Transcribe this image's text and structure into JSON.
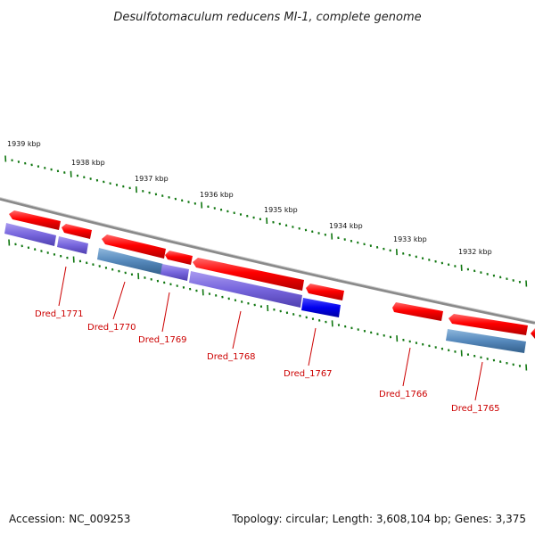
{
  "title": "Desulfotomaculum reducens MI-1, complete genome",
  "ruler_labels": [
    "1939 kbp",
    "1938 kbp",
    "1937 kbp",
    "1936 kbp",
    "1935 kbp",
    "1934 kbp",
    "1933 kbp",
    "1932 kbp"
  ],
  "genes": [
    "Dred_1771",
    "Dred_1770",
    "Dred_1769",
    "Dred_1768",
    "Dred_1767",
    "Dred_1766",
    "Dred_1765"
  ],
  "footer": {
    "accession": "Accession: NC_009253",
    "summary": "Topology: circular; Length: 3,608,104 bp; Genes: 3,375"
  },
  "colors": {
    "forward_cds": "#ff0000",
    "gene_bar": "#7766dd",
    "gene_bar_alt": "#5588bb",
    "gene_bar_highlight": "#0000ee",
    "label": "#cc0000",
    "tick": "#117711",
    "backbone": "#888888"
  }
}
